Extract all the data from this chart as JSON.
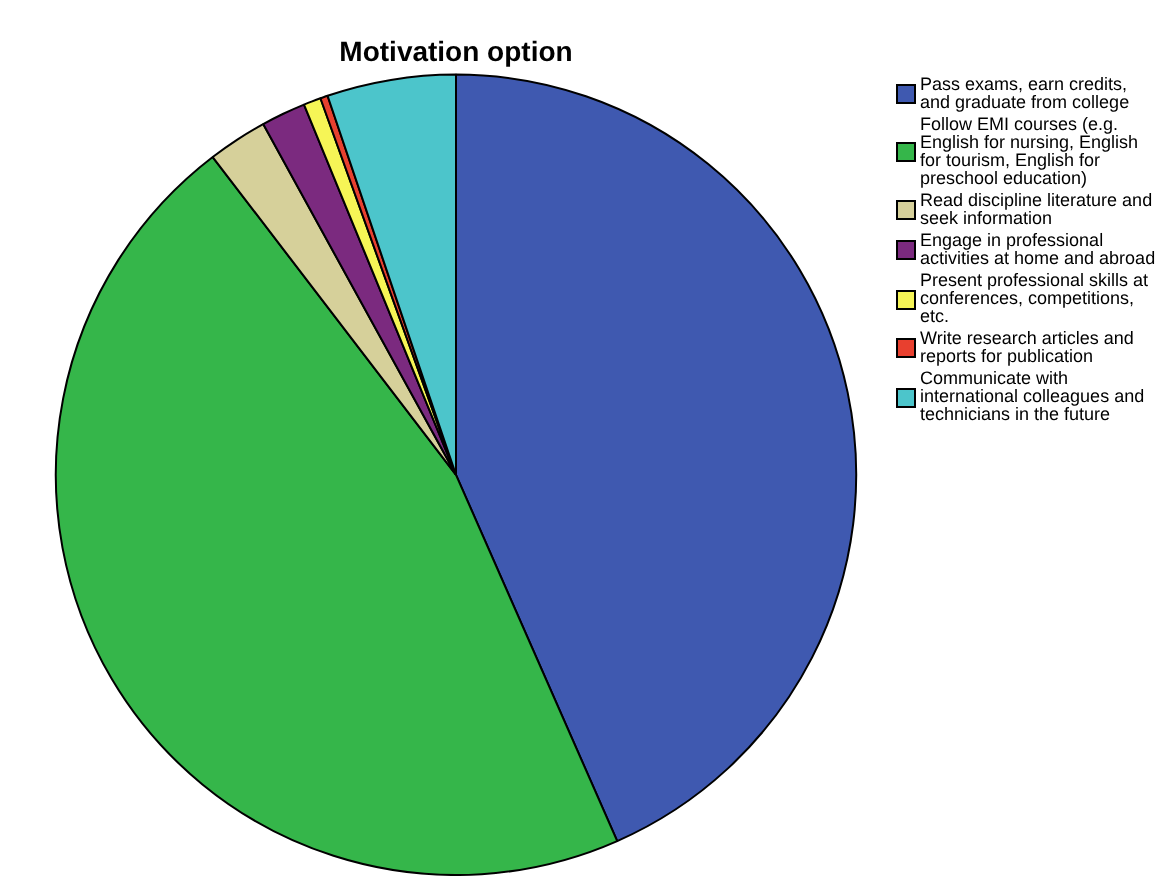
{
  "chart_data": {
    "type": "pie",
    "title": "Motivation option",
    "categories": [
      "Pass exams, earn credits, and graduate from college",
      "Follow EMI courses (e.g. English for nursing, English for tourism, English for preschool education)",
      "Read discipline literature and seek information",
      "Engage in professional activities at home and abroad",
      "Present professional skills at conferences, competitions, etc.",
      "Write research articles and reports for publication",
      "Communicate with international colleagues and technicians in the future"
    ],
    "values": [
      43.4,
      46.2,
      2.4,
      1.8,
      0.7,
      0.3,
      5.2
    ],
    "colors": [
      "#3f59b0",
      "#35b64a",
      "#d6d09a",
      "#7b2a7f",
      "#f6f556",
      "#e8402f",
      "#4cc5cb"
    ],
    "legend": "right"
  }
}
